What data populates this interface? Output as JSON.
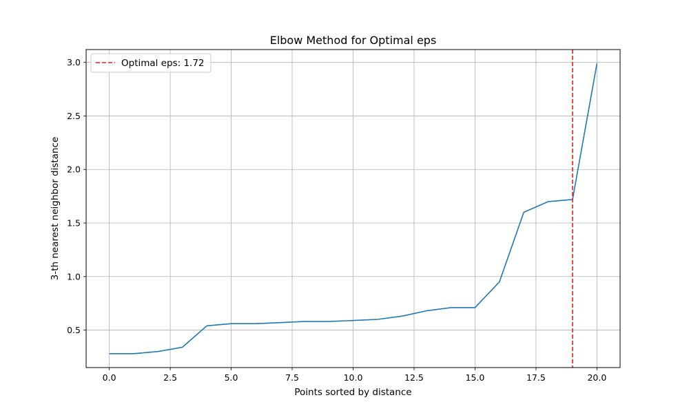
{
  "chart_data": {
    "type": "line",
    "title": "Elbow Method for Optimal eps",
    "xlabel": "Points sorted by distance",
    "ylabel": "3-th nearest neighbor distance",
    "xlim": [
      -0.95,
      20.95
    ],
    "ylim": [
      0.15,
      3.12
    ],
    "xticks": [
      0.0,
      2.5,
      5.0,
      7.5,
      10.0,
      12.5,
      15.0,
      17.5,
      20.0
    ],
    "xtick_labels": [
      "0.0",
      "2.5",
      "5.0",
      "7.5",
      "10.0",
      "12.5",
      "15.0",
      "17.5",
      "20.0"
    ],
    "yticks": [
      0.5,
      1.0,
      1.5,
      2.0,
      2.5,
      3.0
    ],
    "ytick_labels": [
      "0.5",
      "1.0",
      "1.5",
      "2.0",
      "2.5",
      "3.0"
    ],
    "grid": true,
    "legend_position": "top-left",
    "series": [
      {
        "color": "#1f77b4",
        "x": [
          0,
          1,
          2,
          3,
          4,
          5,
          6,
          7,
          8,
          9,
          10,
          11,
          12,
          13,
          14,
          15,
          16,
          17,
          18,
          19,
          20
        ],
        "y": [
          0.28,
          0.28,
          0.3,
          0.34,
          0.54,
          0.56,
          0.56,
          0.57,
          0.58,
          0.58,
          0.59,
          0.6,
          0.63,
          0.68,
          0.71,
          0.71,
          0.95,
          1.6,
          1.7,
          1.72,
          2.99
        ]
      }
    ],
    "vline": {
      "x": 19,
      "label": "Optimal eps: 1.72",
      "color": "#e41a1c",
      "style": "dashed"
    }
  }
}
